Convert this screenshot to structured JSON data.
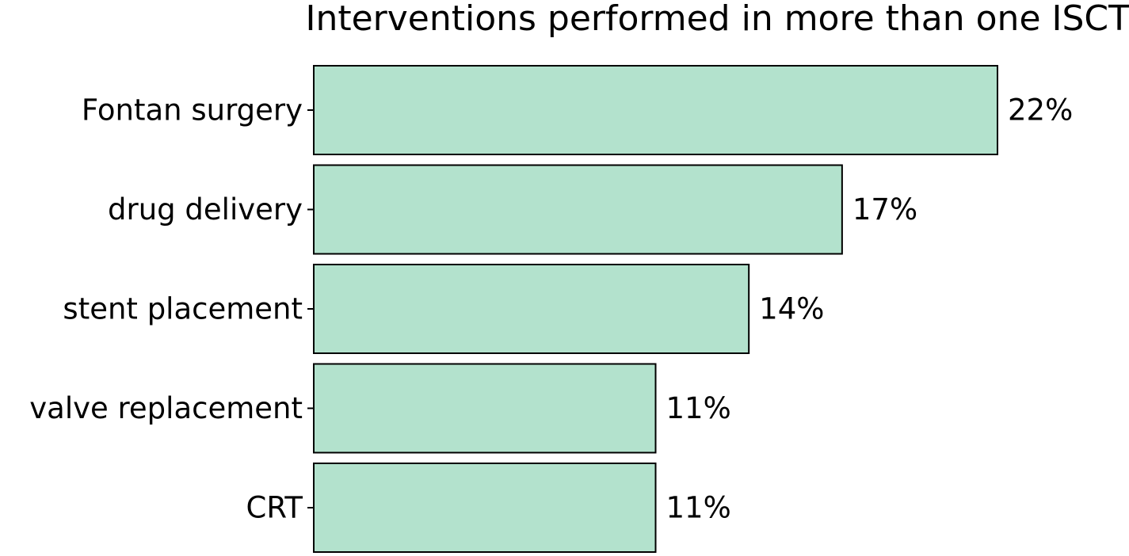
{
  "chart_data": {
    "type": "bar",
    "orientation": "horizontal",
    "title": "Interventions performed in more than one ISCT",
    "xlabel": "",
    "ylabel": "",
    "categories": [
      "Fontan surgery",
      "drug delivery",
      "stent placement",
      "valve replacement",
      "CRT"
    ],
    "values": [
      22,
      17,
      14,
      11,
      11
    ],
    "value_labels": [
      "22%",
      "17%",
      "14%",
      "11%",
      "11%"
    ],
    "unit": "%",
    "xlim": [
      0,
      22
    ],
    "grid": false,
    "legend": "none",
    "bar_color": "#b3e2cd",
    "edge_color": "#000000"
  }
}
